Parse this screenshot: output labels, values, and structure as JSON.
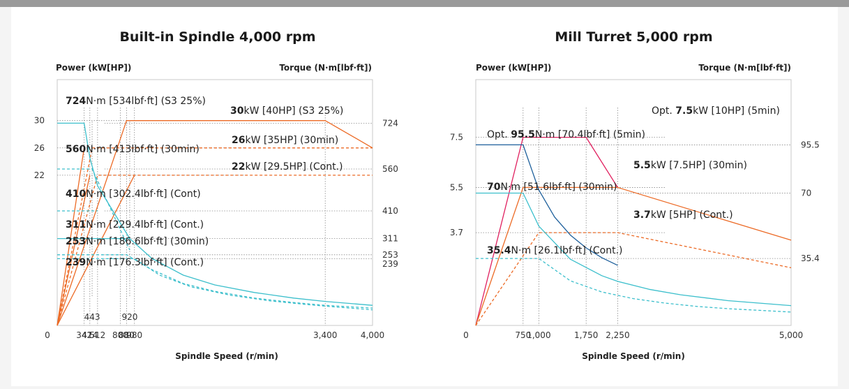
{
  "colors": {
    "orange": "#ec6a25",
    "cyan": "#3cbfcc",
    "magenta": "#e0205f",
    "blue": "#1d5f9b",
    "grid": "#888888",
    "frame": "#c8c8c8"
  },
  "chart_data": [
    {
      "type": "line",
      "title": "Built-in Spindle 4,000 rpm",
      "xlabel": "Spindle Speed (r/min)",
      "ylabel_left": "Power (kW[HP])",
      "ylabel_right": "Torque (N·m[lbf·ft])",
      "xlim": [
        0,
        4000
      ],
      "x_tick_labels": [
        "0",
        "342",
        "414",
        "512",
        "800",
        "880",
        "980",
        "3,400",
        "4,000"
      ],
      "x_ticks": [
        0,
        342,
        414,
        512,
        800,
        880,
        980,
        3400,
        4000
      ],
      "x_upper_tick_labels": [
        "443",
        "920"
      ],
      "x_upper_ticks": [
        443,
        920
      ],
      "power_axis": {
        "range": [
          0,
          36
        ],
        "ticks": [
          30,
          26,
          22
        ],
        "tick_labels": [
          "30",
          "26",
          "22"
        ]
      },
      "torque_axis": {
        "range": [
          0,
          880
        ],
        "ticks": [
          724,
          560,
          410,
          311,
          253,
          239
        ],
        "tick_labels": [
          "724",
          "560",
          "410",
          "311",
          "253",
          "239"
        ]
      },
      "series": [
        {
          "name": "30kW [40HP] (S3 25%)",
          "axis": "power",
          "style": "solid",
          "color": "orange",
          "x": [
            0,
            880,
            3400,
            4000
          ],
          "y": [
            0,
            30,
            30,
            26
          ]
        },
        {
          "name": "26kW [35HP] (30min)",
          "axis": "power",
          "style": "dashed",
          "color": "orange",
          "x": [
            0,
            443,
            4000
          ],
          "y": [
            0,
            26,
            26
          ]
        },
        {
          "name": "22kW [29.5HP] (Cont.)",
          "axis": "power",
          "style": "dashed",
          "color": "orange",
          "x": [
            0,
            512,
            4000
          ],
          "y": [
            0,
            22,
            22
          ]
        },
        {
          "name": "",
          "axis": "power",
          "style": "solid",
          "color": "orange",
          "x": [
            0,
            342
          ],
          "y": [
            0,
            26
          ]
        },
        {
          "name": "",
          "axis": "power",
          "style": "solid",
          "color": "orange",
          "x": [
            0,
            414
          ],
          "y": [
            0,
            22
          ]
        },
        {
          "name": "",
          "axis": "power",
          "style": "solid",
          "color": "orange",
          "x": [
            0,
            980
          ],
          "y": [
            0,
            22
          ]
        },
        {
          "name": "724N·m [534lbf·ft] (S3 25%)",
          "axis": "torque",
          "style": "solid",
          "color": "cyan",
          "x": [
            0,
            342,
            414,
            512,
            920
          ],
          "y": [
            724,
            724,
            600,
            500,
            311
          ]
        },
        {
          "name": "560N·m [413lbf·ft] (30min)",
          "axis": "torque",
          "style": "dashed",
          "color": "cyan",
          "x": [
            0,
            342,
            443,
            920
          ],
          "y": [
            560,
            560,
            560,
            270
          ]
        },
        {
          "name": "410N·m [302.4lbf·ft] (Cont)",
          "axis": "torque",
          "style": "dashed",
          "color": "cyan",
          "x": [
            0,
            414,
            512
          ],
          "y": [
            410,
            410,
            410
          ]
        },
        {
          "name": "311N·m [229.4lbf·ft] (Cont.)",
          "axis": "torque",
          "style": "solid",
          "color": "cyan",
          "x": [
            0,
            920,
            1200,
            1600,
            2000,
            2500,
            3000,
            3400,
            4000
          ],
          "y": [
            311,
            311,
            240,
            180,
            145,
            118,
            98,
            86,
            72
          ]
        },
        {
          "name": "253N·m [186.6lbf·ft] (30min)",
          "axis": "torque",
          "style": "dashed",
          "color": "cyan",
          "x": [
            0,
            880,
            1200,
            1600,
            2000,
            2500,
            3000,
            3400,
            4000
          ],
          "y": [
            253,
            253,
            200,
            150,
            122,
            98,
            82,
            72,
            62
          ]
        },
        {
          "name": "239N·m [176.3lbf·ft] (Cont.)",
          "axis": "torque",
          "style": "dashed",
          "color": "cyan",
          "x": [
            0,
            980,
            1300,
            1700,
            2200,
            2700,
            3200,
            3400,
            4000
          ],
          "y": [
            239,
            239,
            180,
            138,
            108,
            88,
            74,
            69,
            56
          ]
        }
      ],
      "annotations": [
        {
          "id": "a1",
          "bold": "724",
          "rest": "N·m [534lbf·ft] (S3 25%)"
        },
        {
          "id": "a2",
          "bold": "30",
          "rest": "kW [40HP] (S3 25%)"
        },
        {
          "id": "a3",
          "bold": "560",
          "rest": "N·m [413lbf·ft] (30min)"
        },
        {
          "id": "a4",
          "bold": "26",
          "rest": "kW [35HP] (30min)"
        },
        {
          "id": "a5",
          "bold": "22",
          "rest": "kW [29.5HP] (Cont.)"
        },
        {
          "id": "a6",
          "bold": "410",
          "rest": "N·m [302.4lbf·ft] (Cont)"
        },
        {
          "id": "a7",
          "bold": "311",
          "rest": "N·m [229.4lbf·ft] (Cont.)"
        },
        {
          "id": "a8",
          "bold": "253",
          "rest": "N·m [186.6lbf·ft] (30min)"
        },
        {
          "id": "a9",
          "bold": "239",
          "rest": "N·m [176.3lbf·ft] (Cont.)"
        }
      ]
    },
    {
      "type": "line",
      "title": "Mill Turret 5,000 rpm",
      "xlabel": "Spindle Speed (r/min)",
      "ylabel_left": "Power (kW[HP])",
      "ylabel_right": "Torque (N·m[lbf·ft])",
      "xlim": [
        0,
        5000
      ],
      "x_tick_labels": [
        "0",
        "750",
        "1,000",
        "1,750",
        "2,250",
        "5,000"
      ],
      "x_ticks": [
        0,
        750,
        1000,
        1750,
        2250,
        5000
      ],
      "power_axis": {
        "range": [
          0,
          9.8
        ],
        "ticks": [
          7.5,
          5.5,
          3.7
        ],
        "tick_labels": [
          "7.5",
          "5.5",
          "3.7"
        ]
      },
      "torque_axis": {
        "range": [
          0,
          130
        ],
        "ticks": [
          95.5,
          70,
          35.4
        ],
        "tick_labels": [
          "95.5",
          "70",
          "35.4"
        ]
      },
      "series": [
        {
          "name": "Opt. 7.5kW [10HP] (5min)",
          "axis": "power",
          "style": "solid",
          "color": "magenta",
          "x": [
            0,
            750,
            1750,
            2250
          ],
          "y": [
            0,
            7.5,
            7.5,
            5.5
          ]
        },
        {
          "name": "5.5kW [7.5HP] (30min)",
          "axis": "power",
          "style": "solid",
          "color": "orange",
          "x": [
            0,
            750,
            2250,
            5000
          ],
          "y": [
            0,
            5.5,
            5.5,
            3.4
          ]
        },
        {
          "name": "3.7kW [5HP] (Cont.)",
          "axis": "power",
          "style": "dashed",
          "color": "orange",
          "x": [
            0,
            1000,
            2250,
            5000
          ],
          "y": [
            0,
            3.7,
            3.7,
            2.3
          ]
        },
        {
          "name": "Opt. 95.5N·m [70.4lbf·ft] (5min)",
          "axis": "torque",
          "style": "solid",
          "color": "blue",
          "x": [
            0,
            750,
            1000,
            1250,
            1500,
            1750,
            2000,
            2250
          ],
          "y": [
            95.5,
            95.5,
            71.6,
            57.3,
            47.8,
            41.0,
            35.8,
            31.8
          ]
        },
        {
          "name": "70N·m [51.6lbf·ft] (30min)",
          "axis": "torque",
          "style": "solid",
          "color": "cyan",
          "x": [
            0,
            750,
            1000,
            1500,
            2000,
            2250,
            2750,
            3250,
            4000,
            5000
          ],
          "y": [
            70,
            70,
            52.5,
            35,
            26.3,
            23.3,
            19.1,
            16.2,
            13.1,
            10.5
          ]
        },
        {
          "name": "35.4N·m [26.1lbf·ft] (Cont.)",
          "axis": "torque",
          "style": "dashed",
          "color": "cyan",
          "x": [
            0,
            1000,
            1500,
            2000,
            2500,
            3000,
            3500,
            4000,
            5000
          ],
          "y": [
            35.4,
            35.4,
            23.6,
            17.7,
            14.2,
            11.8,
            10.1,
            8.85,
            7.08
          ]
        }
      ],
      "annotations": [
        {
          "id": "b1",
          "pre": "Opt. ",
          "bold": "7.5",
          "rest": "kW [10HP] (5min)"
        },
        {
          "id": "b2",
          "pre": "Opt. ",
          "bold": "95.5",
          "rest": "N·m [70.4lbf·ft] (5min)"
        },
        {
          "id": "b3",
          "pre": "",
          "bold": "5.5",
          "rest": "kW [7.5HP] (30min)"
        },
        {
          "id": "b4",
          "pre": "",
          "bold": "70",
          "rest": "N·m [51.6lbf·ft] (30min)"
        },
        {
          "id": "b5",
          "pre": "",
          "bold": "3.7",
          "rest": "kW [5HP] (Cont.)"
        },
        {
          "id": "b6",
          "pre": "",
          "bold": "35.4",
          "rest": "N·m [26.1lbf·ft] (Cont.)"
        }
      ]
    }
  ]
}
